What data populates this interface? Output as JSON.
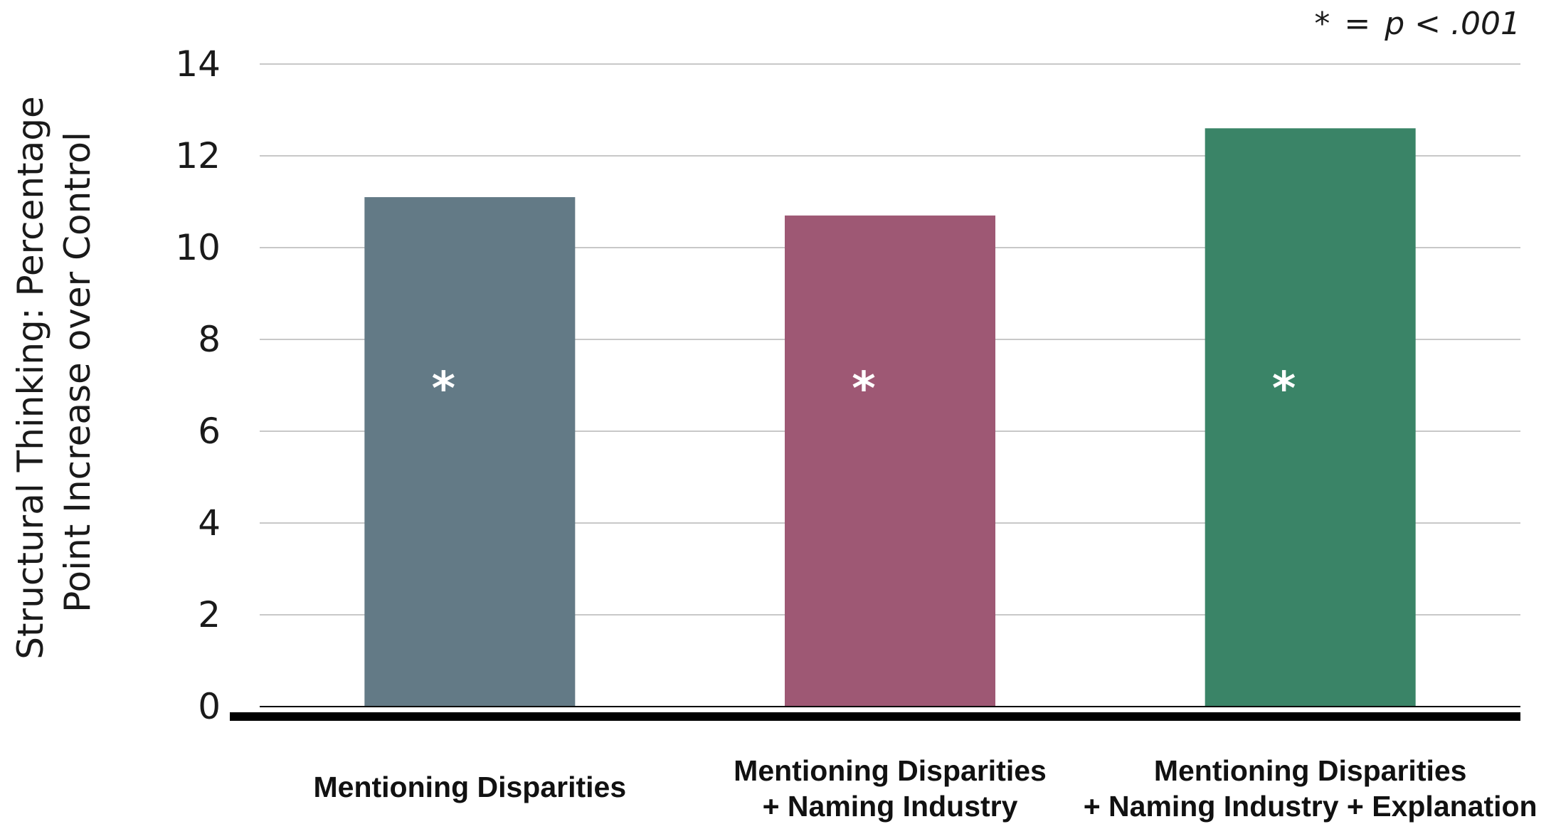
{
  "chart_data": {
    "type": "bar",
    "ylabel": [
      "Structural Thinking: Percentage",
      "Point Increase over Control"
    ],
    "ylim": [
      0,
      14
    ],
    "yticks": [
      0,
      2,
      4,
      6,
      8,
      10,
      12,
      14
    ],
    "grid": true,
    "categories": [
      [
        "Mentioning Disparities"
      ],
      [
        "Mentioning Disparities",
        "+ Naming Industry"
      ],
      [
        "Mentioning Disparities",
        "+ Naming Industry + Explanation"
      ]
    ],
    "values": [
      11.1,
      10.7,
      12.6
    ],
    "colors": [
      "#637a86",
      "#9e5874",
      "#3a8467"
    ],
    "significance_markers": [
      "*",
      "*",
      "*"
    ],
    "annotation": {
      "star": "*",
      "equals": "=",
      "p": "p",
      "rest": "< .001"
    }
  }
}
